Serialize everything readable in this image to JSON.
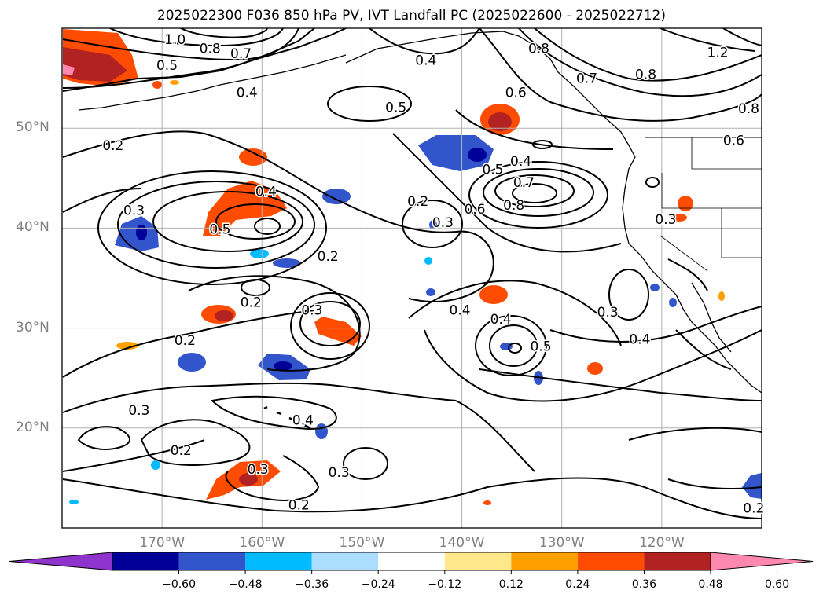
{
  "title": "2025022300 F036 850 hPa PV, IVT Landfall PC (2025022600 - 2025022712)",
  "map": {
    "lon_range": [
      -180,
      -110
    ],
    "lat_range": [
      10,
      60
    ],
    "lat_labels": [
      {
        "lat": 50,
        "text": "50°N"
      },
      {
        "lat": 40,
        "text": "40°N"
      },
      {
        "lat": 30,
        "text": "30°N"
      },
      {
        "lat": 20,
        "text": "20°N"
      }
    ],
    "lon_labels": [
      {
        "lon": -170,
        "text": "170°W"
      },
      {
        "lon": -160,
        "text": "160°W"
      },
      {
        "lon": -150,
        "text": "150°W"
      },
      {
        "lon": -140,
        "text": "140°W"
      },
      {
        "lon": -130,
        "text": "130°W"
      },
      {
        "lon": -120,
        "text": "120°W"
      }
    ],
    "gridlines": true
  },
  "contours": {
    "labels": [
      {
        "text": "1.0",
        "lon": -168.7,
        "lat": 58.9
      },
      {
        "text": "0.8",
        "lon": -165.2,
        "lat": 58.0
      },
      {
        "text": "0.7",
        "lon": -162.1,
        "lat": 57.5
      },
      {
        "text": "0.5",
        "lon": -169.5,
        "lat": 56.3
      },
      {
        "text": "0.4",
        "lon": -161.5,
        "lat": 53.6
      },
      {
        "text": "0.4",
        "lon": -143.6,
        "lat": 56.8
      },
      {
        "text": "0.5",
        "lon": -146.6,
        "lat": 52.1
      },
      {
        "text": "1.2",
        "lon": -114.4,
        "lat": 57.6
      },
      {
        "text": "0.8",
        "lon": -121.6,
        "lat": 55.4
      },
      {
        "text": "0.7",
        "lon": -127.5,
        "lat": 55.0
      },
      {
        "text": "0.6",
        "lon": -112.8,
        "lat": 48.8
      },
      {
        "text": "0.8",
        "lon": -111.3,
        "lat": 52.0
      },
      {
        "text": "0.2",
        "lon": -174.9,
        "lat": 48.3
      },
      {
        "text": "0.3",
        "lon": -172.8,
        "lat": 41.8
      },
      {
        "text": "0.4",
        "lon": -159.6,
        "lat": 43.7
      },
      {
        "text": "0.5",
        "lon": -164.2,
        "lat": 39.9
      },
      {
        "text": "0.2",
        "lon": -153.4,
        "lat": 37.2
      },
      {
        "text": "0.2",
        "lon": -144.4,
        "lat": 42.7
      },
      {
        "text": "0.3",
        "lon": -141.9,
        "lat": 40.6
      },
      {
        "text": "0.5",
        "lon": -136.9,
        "lat": 45.9
      },
      {
        "text": "0.4",
        "lon": -134.1,
        "lat": 46.7
      },
      {
        "text": "0.7",
        "lon": -133.8,
        "lat": 44.6
      },
      {
        "text": "0.6",
        "lon": -138.7,
        "lat": 41.9
      },
      {
        "text": "0.8",
        "lon": -134.8,
        "lat": 42.3
      },
      {
        "text": "0.3",
        "lon": -119.6,
        "lat": 40.9
      },
      {
        "text": "0.2",
        "lon": -161.1,
        "lat": 32.6
      },
      {
        "text": "0.3",
        "lon": -155.0,
        "lat": 31.8
      },
      {
        "text": "0.4",
        "lon": -140.2,
        "lat": 31.8
      },
      {
        "text": "0.4",
        "lon": -136.1,
        "lat": 30.9
      },
      {
        "text": "0.5",
        "lon": -132.1,
        "lat": 28.2
      },
      {
        "text": "0.3",
        "lon": -125.4,
        "lat": 31.6
      },
      {
        "text": "0.4",
        "lon": -122.2,
        "lat": 28.9
      },
      {
        "text": "0.2",
        "lon": -167.7,
        "lat": 28.8
      },
      {
        "text": "0.3",
        "lon": -172.3,
        "lat": 21.8
      },
      {
        "text": "0.4",
        "lon": -155.9,
        "lat": 20.8
      },
      {
        "text": "0.2",
        "lon": -168.1,
        "lat": 17.8
      },
      {
        "text": "0.3",
        "lon": -152.3,
        "lat": 15.6
      },
      {
        "text": "0.3",
        "lon": -160.4,
        "lat": 15.9
      },
      {
        "text": "0.2",
        "lon": -156.3,
        "lat": 12.3
      },
      {
        "text": "0.2",
        "lon": -110.8,
        "lat": 12.0
      },
      {
        "text": "0.8",
        "lon": -132.3,
        "lat": 58.0
      },
      {
        "text": "0.6",
        "lon": -134.6,
        "lat": 53.6
      }
    ]
  },
  "colorbar": {
    "colors": [
      "#8e33cc",
      "#000099",
      "#3355cc",
      "#00bbff",
      "#aaddff",
      "#ffffff",
      "#ffe88c",
      "#ff9f00",
      "#ff4c00",
      "#b22222",
      "#ff88b0"
    ],
    "labels": [
      "−0.60",
      "−0.48",
      "−0.36",
      "−0.24",
      "−0.12",
      "0.12",
      "0.24",
      "0.36",
      "0.48",
      "0.60"
    ]
  }
}
